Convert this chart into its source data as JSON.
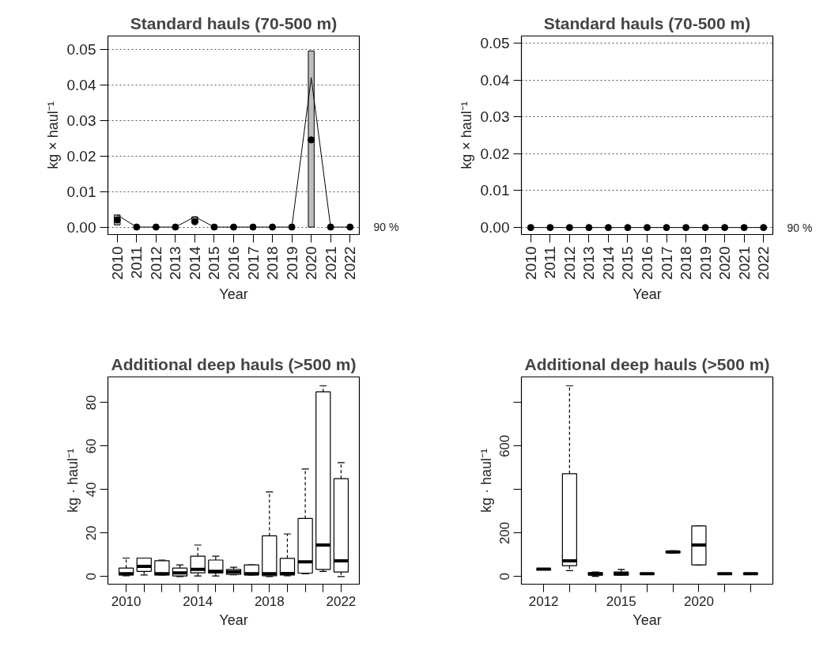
{
  "chart_data": [
    {
      "type": "line",
      "title": "Standard hauls (70-500 m)",
      "xlabel": "Year",
      "ylabel": "kg × haul⁻¹",
      "categories": [
        "2010",
        "2011",
        "2012",
        "2013",
        "2014",
        "2015",
        "2016",
        "2017",
        "2018",
        "2019",
        "2020",
        "2021",
        "2022"
      ],
      "series": [
        {
          "type": "bar",
          "color": "#bebebe",
          "base": [
            0.0006,
            null,
            null,
            null,
            0.0013,
            null,
            null,
            null,
            null,
            null,
            0,
            null,
            null
          ],
          "values": [
            0.0028,
            null,
            null,
            null,
            0.0016,
            null,
            null,
            null,
            null,
            null,
            0.0495,
            null,
            null
          ]
        },
        {
          "type": "line",
          "color": "#000000",
          "marker": "none",
          "values": [
            0.0034,
            0,
            0,
            0,
            0.0029,
            0,
            0,
            0,
            0,
            0,
            0.042,
            0,
            0
          ]
        },
        {
          "type": "scatter",
          "color": "#000000",
          "marker": "circle",
          "values": [
            0.002,
            0,
            0,
            0,
            0.0015,
            0,
            0,
            0,
            0,
            0,
            0.0245,
            0,
            0
          ]
        }
      ],
      "ylim": [
        -0.0021,
        0.0537
      ],
      "yticks": [
        {
          "value": 0,
          "label": "0.00"
        },
        {
          "value": 0.01,
          "label": "0.01"
        },
        {
          "value": 0.02,
          "label": "0.02"
        },
        {
          "value": 0.03,
          "label": "0.03"
        },
        {
          "value": 0.04,
          "label": "0.04"
        },
        {
          "value": 0.05,
          "label": "0.05"
        }
      ],
      "grid": "y",
      "annotations": [
        "90 %"
      ]
    },
    {
      "type": "line",
      "title": "Standard hauls (70-500 m)",
      "xlabel": "Year",
      "ylabel": "kg × haul⁻¹",
      "categories": [
        "2010",
        "2011",
        "2012",
        "2013",
        "2014",
        "2015",
        "2016",
        "2017",
        "2018",
        "2019",
        "2020",
        "2021",
        "2022"
      ],
      "series": [
        {
          "type": "line",
          "color": "#000000",
          "marker": "circle",
          "values": [
            0,
            0,
            0,
            0,
            0,
            0,
            0,
            0,
            0,
            0,
            0,
            0,
            0
          ]
        }
      ],
      "ylim": [
        -0.0019,
        0.0519
      ],
      "yticks": [
        {
          "value": 0,
          "label": "0.00"
        },
        {
          "value": 0.01,
          "label": "0.01"
        },
        {
          "value": 0.02,
          "label": "0.02"
        },
        {
          "value": 0.03,
          "label": "0.03"
        },
        {
          "value": 0.04,
          "label": "0.04"
        },
        {
          "value": 0.05,
          "label": "0.05"
        }
      ],
      "grid": "y",
      "annotations": [
        "90 %"
      ]
    },
    {
      "type": "box",
      "title": "Additional deep hauls (>500 m)",
      "xlabel": "Year",
      "ylabel": "kg · haul⁻¹",
      "categories": [
        "2010",
        null,
        null,
        null,
        "2014",
        null,
        null,
        null,
        "2018",
        null,
        null,
        null,
        "2022"
      ],
      "boxes": [
        {
          "low": 0.4,
          "q1": 0.7,
          "median": 1.3,
          "q3": 3.9,
          "high": 8.5
        },
        {
          "low": 0.7,
          "q1": 2.4,
          "median": 4.7,
          "q3": 8.5,
          "high": 8.5
        },
        {
          "low": 0.7,
          "q1": 0.7,
          "median": 1.3,
          "q3": 7.3,
          "high": 7.6
        },
        {
          "low": 0,
          "q1": 0.3,
          "median": 1.7,
          "q3": 3.9,
          "high": 5.4
        },
        {
          "low": 0.3,
          "q1": 1.7,
          "median": 3.3,
          "q3": 9.4,
          "high": 14.5
        },
        {
          "low": 0.3,
          "q1": 1.6,
          "median": 2.4,
          "q3": 7.6,
          "high": 9.4
        },
        {
          "low": 0.8,
          "q1": 1.0,
          "median": 2.1,
          "q3": 3.3,
          "high": 4.3
        },
        {
          "low": 0.7,
          "q1": 0.7,
          "median": 1.3,
          "q3": 5.4,
          "high": 5.4
        },
        {
          "low": 0,
          "q1": 0.4,
          "median": 1.3,
          "q3": 18.7,
          "high": 38.9
        },
        {
          "low": 0.4,
          "q1": 0.7,
          "median": 1.4,
          "q3": 8.4,
          "high": 19.6
        },
        {
          "low": 1.3,
          "q1": 1.6,
          "median": 6.8,
          "q3": 26.7,
          "high": 49.5
        },
        {
          "low": 2.4,
          "q1": 3.3,
          "median": 14.5,
          "q3": 84.9,
          "high": 87.7
        },
        {
          "low": 0,
          "q1": 2.1,
          "median": 7.2,
          "q3": 45.0,
          "high": 52.4
        }
      ],
      "ylim": [
        -3.5,
        91.8
      ],
      "yticks": [
        0,
        20,
        40,
        60,
        80
      ],
      "grid": false
    },
    {
      "type": "box",
      "title": "Additional deep hauls (>500 m)",
      "xlabel": "Year",
      "ylabel": "kg · haul⁻¹",
      "categories": [
        "2012",
        null,
        null,
        "2015",
        null,
        null,
        "2020",
        null,
        null
      ],
      "boxes": [
        {
          "low": 32,
          "q1": 33,
          "median": 34,
          "q3": 35,
          "high": 36
        },
        {
          "low": 27,
          "q1": 50,
          "median": 72,
          "q3": 473,
          "high": 877
        },
        {
          "low": 1,
          "q1": 6,
          "median": 12,
          "q3": 18,
          "high": 21
        },
        {
          "low": 6,
          "q1": 6,
          "median": 13,
          "q3": 21,
          "high": 33
        },
        {
          "low": 10,
          "q1": 11,
          "median": 13,
          "q3": 15,
          "high": 16
        },
        {
          "low": 108,
          "q1": 110,
          "median": 113,
          "q3": 116,
          "high": 118
        },
        {
          "low": 54,
          "q1": 54,
          "median": 145,
          "q3": 233,
          "high": 233
        },
        {
          "low": 10,
          "q1": 11,
          "median": 13,
          "q3": 15,
          "high": 16
        },
        {
          "low": 10,
          "q1": 11,
          "median": 13,
          "q3": 15,
          "high": 16
        }
      ],
      "ylim": [
        -35,
        918
      ],
      "yticks": [
        0,
        200,
        {
          "value": 400,
          "label": null
        },
        600,
        {
          "value": 800,
          "label": null
        }
      ],
      "grid": false
    }
  ]
}
